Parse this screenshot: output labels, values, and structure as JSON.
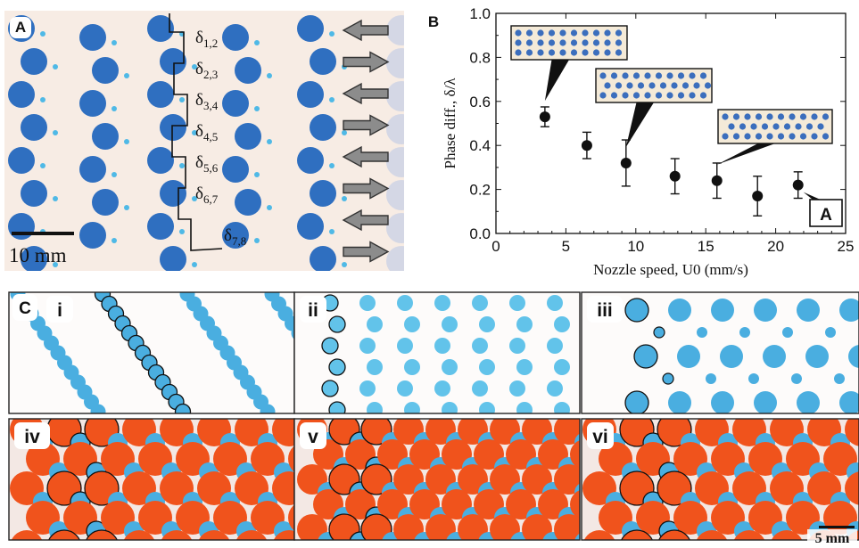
{
  "panel_a": {
    "label": "A",
    "scale_bar": "10 mm",
    "deltas": [
      "δ1,2",
      "δ2,3",
      "δ3,4",
      "δ4,5",
      "δ5,6",
      "δ6,7",
      "δ7,8"
    ],
    "delta_main": "δ",
    "delta_subs": [
      "1,2",
      "2,3",
      "3,4",
      "4,5",
      "5,6",
      "6,7",
      "7,8"
    ],
    "arrow_directions": [
      "left",
      "right",
      "left",
      "right",
      "left",
      "right",
      "left",
      "right"
    ],
    "colors": {
      "background": "#f7ece4",
      "drop": "#2f6fc0",
      "small_drop": "#4fb9e6",
      "arrow": "#8c8c8c"
    }
  },
  "panel_b": {
    "label": "B",
    "marker_label": "A",
    "chart_data": {
      "type": "scatter",
      "xlabel": "Nozzle speed, U0 (mm/s)",
      "ylabel": "Phase diff., δ/λ",
      "xlim": [
        0,
        25
      ],
      "ylim": [
        0,
        1.0
      ],
      "x_ticks": [
        "0",
        "5",
        "10",
        "15",
        "20",
        "25"
      ],
      "y_ticks": [
        "0.0",
        "0.2",
        "0.4",
        "0.6",
        "0.8",
        "1.0"
      ],
      "points": [
        {
          "x": 3.5,
          "y": 0.53,
          "err": 0.045
        },
        {
          "x": 6.5,
          "y": 0.4,
          "err": 0.06
        },
        {
          "x": 9.3,
          "y": 0.32,
          "err": 0.105
        },
        {
          "x": 12.8,
          "y": 0.26,
          "err": 0.08
        },
        {
          "x": 15.8,
          "y": 0.24,
          "err": 0.08
        },
        {
          "x": 18.7,
          "y": 0.17,
          "err": 0.09
        },
        {
          "x": 21.6,
          "y": 0.22,
          "err": 0.06
        }
      ],
      "grid": false
    }
  },
  "panel_c": {
    "label": "C",
    "subpanels": [
      "i",
      "ii",
      "iii",
      "iv",
      "v",
      "vi"
    ],
    "scale_bar": "5 mm",
    "colors": {
      "cyan_drop": "#4aaee0",
      "light_cyan": "#62c3ea",
      "orange_drop": "#f0531c",
      "outline": "#111111",
      "background": "#fbf5f2"
    }
  }
}
